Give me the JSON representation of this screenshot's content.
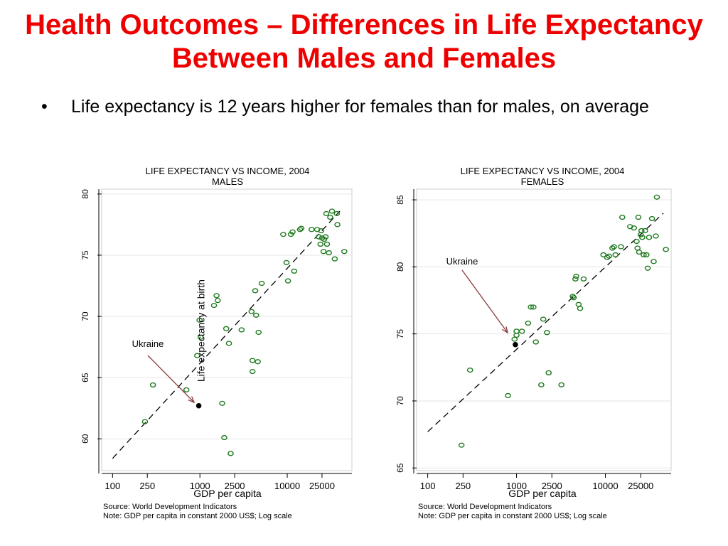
{
  "slide": {
    "title": "Health Outcomes – Differences in Life Expectancy Between Males and Females",
    "bullet_marker": "•",
    "bullet": "Life expectancy is 12 years higher for females than for males, on average"
  },
  "chart_data": [
    {
      "type": "scatter",
      "title": "LIFE EXPECTANCY VS INCOME, 2004",
      "subtitle": "MALES",
      "xlabel": "GDP per capita",
      "ylabel": "Life expectancy at birth",
      "x_scale": "log",
      "x_ticks": [
        100,
        250,
        1000,
        2500,
        10000,
        25000
      ],
      "x_tick_labels": [
        "100",
        "250",
        "1000",
        "2500",
        "10000",
        "25000"
      ],
      "y_ticks": [
        60,
        65,
        70,
        75,
        80
      ],
      "ylim": [
        57.4,
        80.4
      ],
      "xlim": [
        75,
        55000
      ],
      "source": "Source: World Development Indicators",
      "note": "Note: GDP per capita in constant 2000 US$; Log scale",
      "annotation": {
        "label": "Ukraine",
        "x": 970,
        "y": 62.7
      },
      "fit_line": {
        "x1": 100,
        "y1": 58.4,
        "x2": 40000,
        "y2": 78.6
      },
      "points": [
        {
          "x": 235,
          "y": 61.4
        },
        {
          "x": 290,
          "y": 64.4
        },
        {
          "x": 700,
          "y": 64.0
        },
        {
          "x": 930,
          "y": 66.8
        },
        {
          "x": 990,
          "y": 69.7
        },
        {
          "x": 1020,
          "y": 68.3
        },
        {
          "x": 1450,
          "y": 70.9
        },
        {
          "x": 1550,
          "y": 71.7
        },
        {
          "x": 1600,
          "y": 71.3
        },
        {
          "x": 1800,
          "y": 62.9
        },
        {
          "x": 1900,
          "y": 60.1
        },
        {
          "x": 2000,
          "y": 69.0
        },
        {
          "x": 2150,
          "y": 67.8
        },
        {
          "x": 2250,
          "y": 58.8
        },
        {
          "x": 3000,
          "y": 68.9
        },
        {
          "x": 3900,
          "y": 70.4
        },
        {
          "x": 4000,
          "y": 66.4
        },
        {
          "x": 4000,
          "y": 65.5
        },
        {
          "x": 4300,
          "y": 72.1
        },
        {
          "x": 4400,
          "y": 70.1
        },
        {
          "x": 4600,
          "y": 66.3
        },
        {
          "x": 4700,
          "y": 68.7
        },
        {
          "x": 5100,
          "y": 72.7
        },
        {
          "x": 9000,
          "y": 76.7
        },
        {
          "x": 9800,
          "y": 74.4
        },
        {
          "x": 10200,
          "y": 72.9
        },
        {
          "x": 11000,
          "y": 76.7
        },
        {
          "x": 11500,
          "y": 76.9
        },
        {
          "x": 12000,
          "y": 73.7
        },
        {
          "x": 14000,
          "y": 77.1
        },
        {
          "x": 14500,
          "y": 77.2
        },
        {
          "x": 19000,
          "y": 77.1
        },
        {
          "x": 22000,
          "y": 77.1
        },
        {
          "x": 23000,
          "y": 76.5
        },
        {
          "x": 24000,
          "y": 75.9
        },
        {
          "x": 24500,
          "y": 77.0
        },
        {
          "x": 25000,
          "y": 76.4
        },
        {
          "x": 26000,
          "y": 75.3
        },
        {
          "x": 26500,
          "y": 76.3
        },
        {
          "x": 27500,
          "y": 76.5
        },
        {
          "x": 28500,
          "y": 75.9
        },
        {
          "x": 28000,
          "y": 78.4
        },
        {
          "x": 30000,
          "y": 75.2
        },
        {
          "x": 31000,
          "y": 78.1
        },
        {
          "x": 32500,
          "y": 78.6
        },
        {
          "x": 35000,
          "y": 74.7
        },
        {
          "x": 37000,
          "y": 78.4
        },
        {
          "x": 37500,
          "y": 77.5
        },
        {
          "x": 45000,
          "y": 75.3
        }
      ]
    },
    {
      "type": "scatter",
      "title": "LIFE EXPECTANCY VS INCOME, 2004",
      "subtitle": "FEMALES",
      "xlabel": "GDP per capita",
      "ylabel": "",
      "x_scale": "log",
      "x_ticks": [
        100,
        250,
        1000,
        2500,
        10000,
        25000
      ],
      "x_tick_labels": [
        "100",
        "250",
        "1000",
        "2500",
        "10000",
        "25000"
      ],
      "y_ticks": [
        65,
        70,
        75,
        80,
        85
      ],
      "ylim": [
        64.8,
        85.8
      ],
      "xlim": [
        75,
        55000
      ],
      "source": "Source: World Development Indicators",
      "note": "Note: GDP per capita in constant 2000 US$; Log scale",
      "annotation": {
        "label": "Ukraine",
        "x": 970,
        "y": 74.2
      },
      "fit_line": {
        "x1": 100,
        "y1": 67.7,
        "x2": 45000,
        "y2": 84.0
      },
      "points": [
        {
          "x": 240,
          "y": 66.7
        },
        {
          "x": 300,
          "y": 72.3
        },
        {
          "x": 800,
          "y": 70.4
        },
        {
          "x": 950,
          "y": 74.6
        },
        {
          "x": 1000,
          "y": 74.9
        },
        {
          "x": 1000,
          "y": 75.2
        },
        {
          "x": 1150,
          "y": 75.2
        },
        {
          "x": 1350,
          "y": 75.8
        },
        {
          "x": 1450,
          "y": 77.0
        },
        {
          "x": 1550,
          "y": 77.0
        },
        {
          "x": 1650,
          "y": 74.4
        },
        {
          "x": 1900,
          "y": 71.2
        },
        {
          "x": 2000,
          "y": 76.1
        },
        {
          "x": 2200,
          "y": 75.1
        },
        {
          "x": 2300,
          "y": 72.1
        },
        {
          "x": 3200,
          "y": 71.2
        },
        {
          "x": 4300,
          "y": 77.8
        },
        {
          "x": 4400,
          "y": 77.7
        },
        {
          "x": 4600,
          "y": 79.1
        },
        {
          "x": 4700,
          "y": 79.3
        },
        {
          "x": 5000,
          "y": 77.2
        },
        {
          "x": 5200,
          "y": 76.9
        },
        {
          "x": 5700,
          "y": 79.1
        },
        {
          "x": 9500,
          "y": 80.9
        },
        {
          "x": 10500,
          "y": 80.7
        },
        {
          "x": 11000,
          "y": 80.8
        },
        {
          "x": 12000,
          "y": 81.4
        },
        {
          "x": 12500,
          "y": 81.5
        },
        {
          "x": 13000,
          "y": 80.9
        },
        {
          "x": 15000,
          "y": 81.5
        },
        {
          "x": 15500,
          "y": 83.7
        },
        {
          "x": 19000,
          "y": 83.0
        },
        {
          "x": 21000,
          "y": 82.9
        },
        {
          "x": 22500,
          "y": 81.9
        },
        {
          "x": 23000,
          "y": 81.4
        },
        {
          "x": 23500,
          "y": 83.7
        },
        {
          "x": 24000,
          "y": 81.1
        },
        {
          "x": 25000,
          "y": 82.4
        },
        {
          "x": 25500,
          "y": 82.7
        },
        {
          "x": 26000,
          "y": 82.2
        },
        {
          "x": 27000,
          "y": 80.9
        },
        {
          "x": 28000,
          "y": 82.7
        },
        {
          "x": 29000,
          "y": 80.9
        },
        {
          "x": 30000,
          "y": 79.9
        },
        {
          "x": 31000,
          "y": 82.2
        },
        {
          "x": 33500,
          "y": 83.6
        },
        {
          "x": 35000,
          "y": 80.4
        },
        {
          "x": 37000,
          "y": 82.3
        },
        {
          "x": 38000,
          "y": 85.2
        },
        {
          "x": 48000,
          "y": 81.3
        }
      ]
    }
  ],
  "colors": {
    "title": "#ee0000",
    "marker": "#1f7a1f",
    "ukraine_marker": "#000000",
    "arrow": "#8b3a3a",
    "grid": "#e6e6e6",
    "fit_line": "#000000"
  }
}
